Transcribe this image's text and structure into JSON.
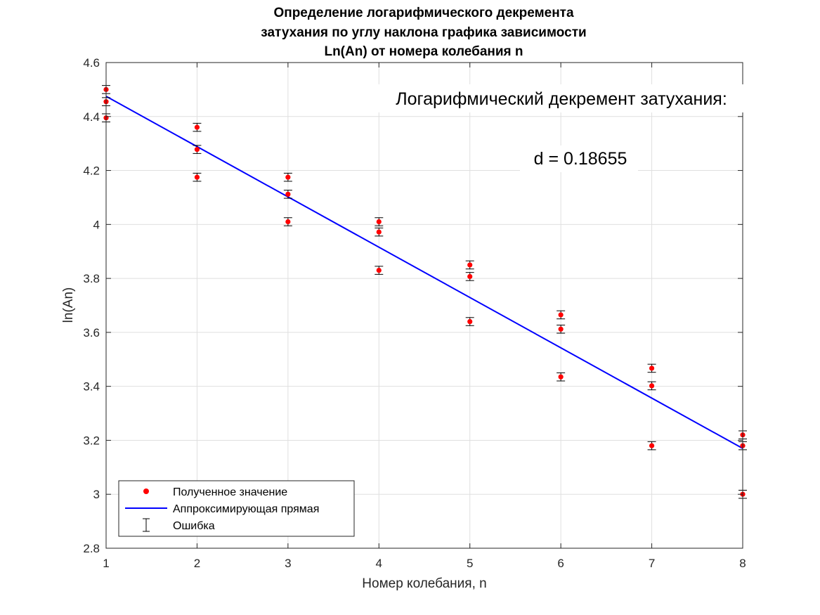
{
  "chart_data": {
    "type": "scatter",
    "title_lines": [
      "Определение логарифмического декремента",
      "затухания по углу наклона графика зависимости",
      "Ln(An) от номера колебания n"
    ],
    "xlabel": "Номер колебания, n",
    "ylabel": "ln(An)",
    "xlim": [
      1,
      8
    ],
    "ylim": [
      2.8,
      4.6
    ],
    "x_ticks": [
      1,
      2,
      3,
      4,
      5,
      6,
      7,
      8
    ],
    "x_tick_labels": [
      "1",
      "2",
      "3",
      "4",
      "5",
      "6",
      "7",
      "8"
    ],
    "y_ticks": [
      2.8,
      3.0,
      3.2,
      3.4,
      3.6,
      3.8,
      4.0,
      4.2,
      4.4,
      4.6
    ],
    "y_tick_labels": [
      "2.8",
      "3",
      "3.2",
      "3.4",
      "3.6",
      "3.8",
      "4",
      "4.2",
      "4.4",
      "4.6"
    ],
    "grid": true,
    "series": [
      {
        "name": "Полученное значение",
        "kind": "points",
        "color": "#ff0000",
        "x": [
          1,
          1,
          1,
          2,
          2,
          2,
          3,
          3,
          3,
          4,
          4,
          4,
          5,
          5,
          5,
          6,
          6,
          6,
          7,
          7,
          7,
          8,
          8,
          8
        ],
        "y": [
          4.5,
          4.455,
          4.395,
          4.36,
          4.278,
          4.175,
          4.175,
          4.112,
          4.01,
          4.01,
          3.972,
          3.83,
          3.85,
          3.807,
          3.64,
          3.665,
          3.612,
          3.435,
          3.467,
          3.402,
          3.18,
          3.22,
          3.18,
          3.0
        ]
      },
      {
        "name": "Аппроксимирующая прямая",
        "kind": "line",
        "color": "#0000ff",
        "x": [
          1,
          8
        ],
        "y": [
          4.475,
          3.17
        ]
      },
      {
        "name": "Ошибка",
        "kind": "errorbar",
        "color": "#000000",
        "error": 0.015
      }
    ],
    "annotations": [
      "Логарифмический декремент затухания:",
      "d = 0.18655"
    ],
    "legend_position": "bottom-left"
  }
}
